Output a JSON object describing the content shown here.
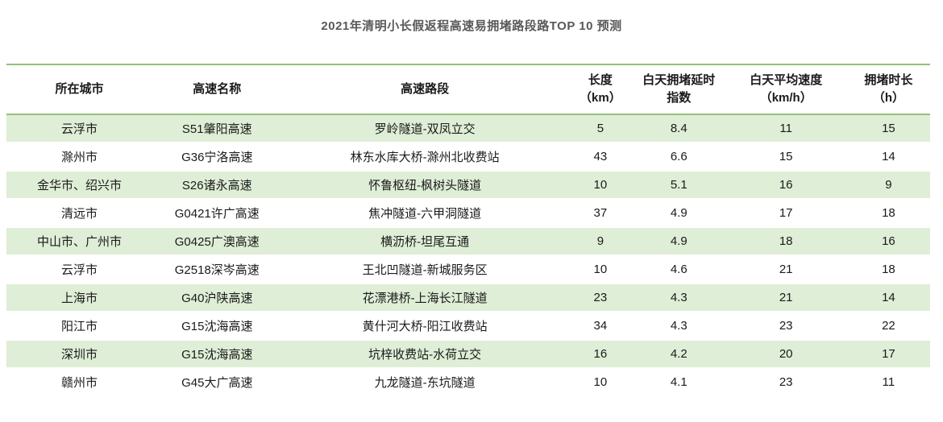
{
  "title": "2021年清明小长假返程高速易拥堵路段路TOP 10 预测",
  "colors": {
    "border_green": "#93c07b",
    "stripe_green": "#dfeed6",
    "title_text": "#595959",
    "cell_text": "#1a1a1a"
  },
  "chart_data": {
    "type": "table",
    "title": "2021年清明小长假返程高速易拥堵路段路TOP 10 预测",
    "columns": [
      "所在城市",
      "高速名称",
      "高速路段",
      "长度\n（km）",
      "白天拥堵延时\n指数",
      "白天平均速度\n（km/h）",
      "拥堵时长\n（h）"
    ],
    "rows": [
      [
        "云浮市",
        "S51肇阳高速",
        "罗岭隧道-双凤立交",
        "5",
        "8.4",
        "11",
        "15"
      ],
      [
        "滁州市",
        "G36宁洛高速",
        "林东水库大桥-滁州北收费站",
        "43",
        "6.6",
        "15",
        "14"
      ],
      [
        "金华市、绍兴市",
        "S26诸永高速",
        "怀鲁枢纽-枫树头隧道",
        "10",
        "5.1",
        "16",
        "9"
      ],
      [
        "清远市",
        "G0421许广高速",
        "焦冲隧道-六甲洞隧道",
        "37",
        "4.9",
        "17",
        "18"
      ],
      [
        "中山市、广州市",
        "G0425广澳高速",
        "横沥桥-坦尾互通",
        "9",
        "4.9",
        "18",
        "16"
      ],
      [
        "云浮市",
        "G2518深岑高速",
        "王北凹隧道-新城服务区",
        "10",
        "4.6",
        "21",
        "18"
      ],
      [
        "上海市",
        "G40沪陕高速",
        "花漂港桥-上海长江隧道",
        "23",
        "4.3",
        "21",
        "14"
      ],
      [
        "阳江市",
        "G15沈海高速",
        "黄什河大桥-阳江收费站",
        "34",
        "4.3",
        "23",
        "22"
      ],
      [
        "深圳市",
        "G15沈海高速",
        "坑梓收费站-水荷立交",
        "16",
        "4.2",
        "20",
        "17"
      ],
      [
        "赣州市",
        "G45大广高速",
        "九龙隧道-东坑隧道",
        "10",
        "4.1",
        "23",
        "11"
      ]
    ]
  }
}
